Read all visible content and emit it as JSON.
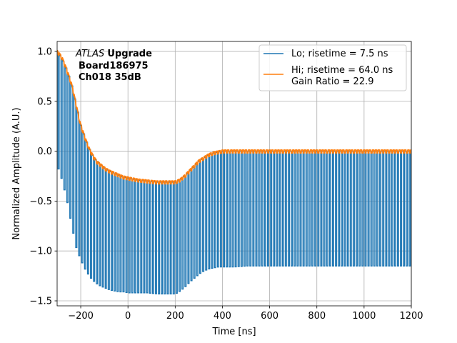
{
  "chart_data": {
    "type": "line",
    "title": "",
    "xlabel": "Time [ns]",
    "ylabel": "Normalized Amplitude (A.U.)",
    "xlim": [
      -300,
      1200
    ],
    "ylim": [
      -1.55,
      1.1
    ],
    "xticks": [
      -200,
      0,
      200,
      400,
      600,
      800,
      1000,
      1200
    ],
    "yticks": [
      -1.5,
      -1.0,
      -0.5,
      0.0,
      0.5,
      1.0
    ],
    "xtick_labels": [
      "−200",
      "0",
      "200",
      "400",
      "600",
      "800",
      "1000",
      "1200"
    ],
    "ytick_labels": [
      "−1.5",
      "−1.0",
      "−0.5",
      "0.0",
      "0.5",
      "1.0"
    ],
    "grid": true,
    "legend_position": "top-right",
    "annotation": {
      "italic": "ATLAS",
      "bold": "Upgrade",
      "line2": "Board186975",
      "line3": "Ch018 35dB"
    },
    "series": [
      {
        "name": "Lo; risetime = 7.5 ns",
        "color": "#1f77b4",
        "description": "square-wave pulse train",
        "period_ns": 12.5,
        "envelope_high": {
          "x": [
            -300,
            -280,
            -260,
            -240,
            -220,
            -200,
            -180,
            -160,
            -140,
            -120,
            -100,
            -80,
            -60,
            -40,
            -20,
            0,
            40,
            80,
            120,
            160,
            200,
            220,
            240,
            260,
            280,
            300,
            320,
            340,
            360,
            380,
            400,
            450,
            500,
            600,
            700,
            800,
            900,
            1000,
            1100,
            1200
          ],
          "y": [
            1.0,
            0.93,
            0.82,
            0.68,
            0.47,
            0.26,
            0.12,
            0.0,
            -0.08,
            -0.13,
            -0.17,
            -0.2,
            -0.22,
            -0.24,
            -0.26,
            -0.27,
            -0.29,
            -0.3,
            -0.31,
            -0.31,
            -0.31,
            -0.29,
            -0.25,
            -0.2,
            -0.15,
            -0.1,
            -0.07,
            -0.04,
            -0.02,
            -0.01,
            0.0,
            0.0,
            0.0,
            0.0,
            0.0,
            0.0,
            0.0,
            0.0,
            0.0,
            0.0
          ]
        },
        "envelope_low": {
          "x": [
            -300,
            -280,
            -260,
            -240,
            -220,
            -200,
            -180,
            -160,
            -140,
            -120,
            -100,
            -80,
            -60,
            -40,
            -20,
            0,
            40,
            80,
            120,
            160,
            200,
            220,
            240,
            260,
            280,
            300,
            320,
            340,
            360,
            380,
            400,
            450,
            500,
            600,
            700,
            800,
            900,
            1000,
            1100,
            1200
          ],
          "y": [
            -0.15,
            -0.3,
            -0.5,
            -0.75,
            -0.98,
            -1.1,
            -1.2,
            -1.27,
            -1.32,
            -1.35,
            -1.37,
            -1.39,
            -1.4,
            -1.41,
            -1.41,
            -1.42,
            -1.42,
            -1.42,
            -1.43,
            -1.43,
            -1.43,
            -1.4,
            -1.36,
            -1.31,
            -1.27,
            -1.23,
            -1.2,
            -1.18,
            -1.17,
            -1.16,
            -1.16,
            -1.16,
            -1.15,
            -1.15,
            -1.15,
            -1.15,
            -1.15,
            -1.15,
            -1.15,
            -1.15
          ]
        }
      },
      {
        "name": "Hi; risetime = 64.0 ns\n Gain Ratio = 22.9",
        "color": "#ff7f0e",
        "description": "upper envelope with small ripple",
        "x": [
          -300,
          -290,
          -280,
          -270,
          -260,
          -250,
          -240,
          -230,
          -220,
          -210,
          -200,
          -190,
          -180,
          -170,
          -160,
          -150,
          -140,
          -130,
          -120,
          -110,
          -100,
          -80,
          -60,
          -40,
          -20,
          0,
          40,
          80,
          120,
          160,
          200,
          220,
          240,
          260,
          280,
          300,
          320,
          340,
          360,
          380,
          400,
          450,
          500,
          600,
          700,
          800,
          900,
          1000,
          1100,
          1200
        ],
        "y": [
          1.0,
          0.97,
          0.94,
          0.88,
          0.82,
          0.75,
          0.68,
          0.58,
          0.47,
          0.36,
          0.26,
          0.19,
          0.12,
          0.06,
          0.0,
          -0.04,
          -0.08,
          -0.11,
          -0.13,
          -0.15,
          -0.17,
          -0.2,
          -0.22,
          -0.24,
          -0.26,
          -0.27,
          -0.29,
          -0.3,
          -0.31,
          -0.31,
          -0.31,
          -0.29,
          -0.25,
          -0.2,
          -0.15,
          -0.1,
          -0.07,
          -0.04,
          -0.02,
          -0.01,
          0.0,
          0.0,
          0.0,
          0.0,
          0.0,
          0.0,
          0.0,
          0.0,
          0.0,
          0.0
        ]
      }
    ]
  }
}
